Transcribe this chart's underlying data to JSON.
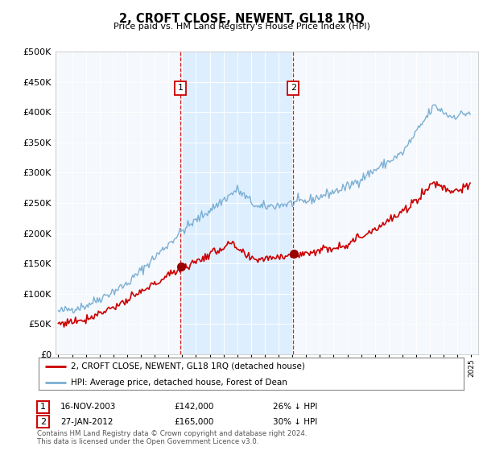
{
  "title": "2, CROFT CLOSE, NEWENT, GL18 1RQ",
  "subtitle": "Price paid vs. HM Land Registry's House Price Index (HPI)",
  "legend_line1": "2, CROFT CLOSE, NEWENT, GL18 1RQ (detached house)",
  "legend_line2": "HPI: Average price, detached house, Forest of Dean",
  "annotation1_label": "1",
  "annotation1_date": "16-NOV-2003",
  "annotation1_price": "£142,000",
  "annotation1_hpi": "26% ↓ HPI",
  "annotation1_year": 2003.88,
  "annotation1_value": 142000,
  "annotation2_label": "2",
  "annotation2_date": "27-JAN-2012",
  "annotation2_price": "£165,000",
  "annotation2_hpi": "30% ↓ HPI",
  "annotation2_year": 2012.07,
  "annotation2_value": 165000,
  "red_color": "#cc0000",
  "blue_color": "#7bafd4",
  "shade_color": "#ddeeff",
  "grid_color": "#cccccc",
  "bg_color": "#f5f8fc",
  "ylim": [
    0,
    500000
  ],
  "xlim_start": 1994.8,
  "xlim_end": 2025.5,
  "footer": "Contains HM Land Registry data © Crown copyright and database right 2024.\nThis data is licensed under the Open Government Licence v3.0."
}
